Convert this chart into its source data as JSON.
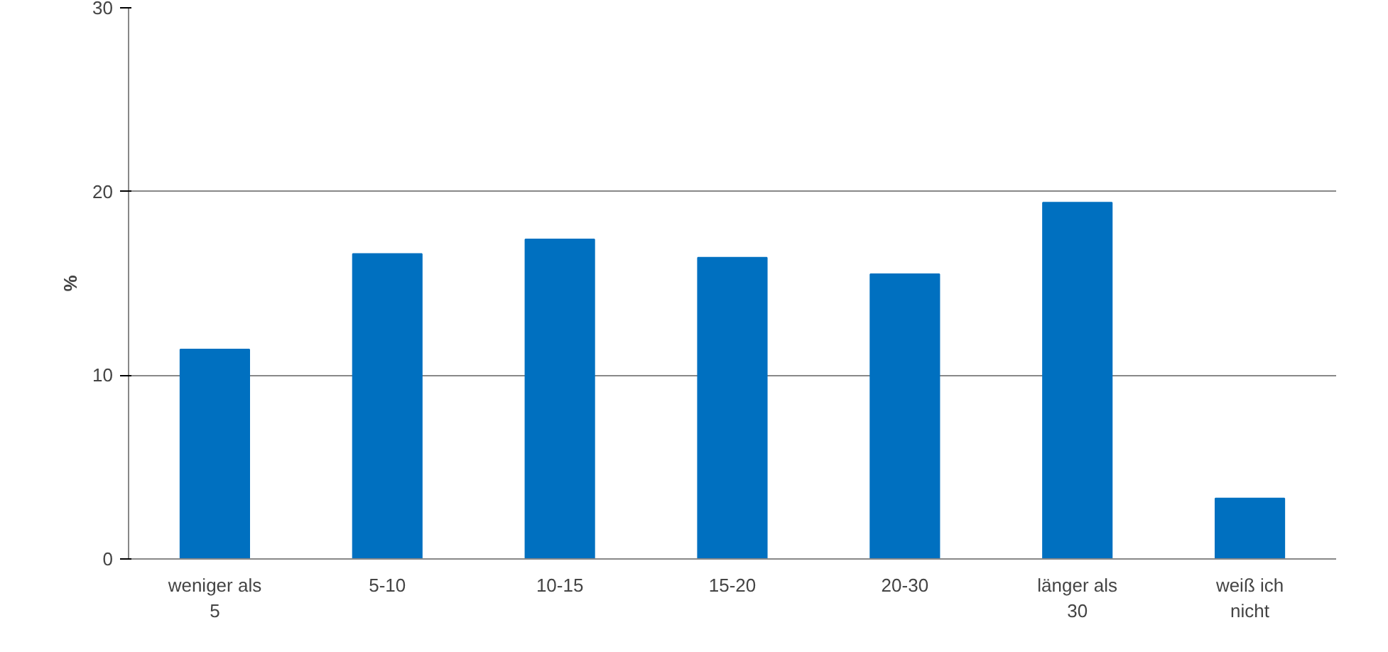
{
  "chart_data": {
    "type": "bar",
    "ylabel": "%",
    "categories": [
      "weniger als\n5",
      "5-10",
      "10-15",
      "15-20",
      "20-30",
      "länger als\n30",
      "weiß ich\nnicht"
    ],
    "values": [
      11.4,
      16.6,
      17.4,
      16.4,
      15.5,
      19.4,
      3.3
    ],
    "color": "#0070c0",
    "ylim": [
      0,
      30
    ],
    "yticks": [
      0,
      10,
      20,
      30
    ],
    "grid": "y"
  }
}
